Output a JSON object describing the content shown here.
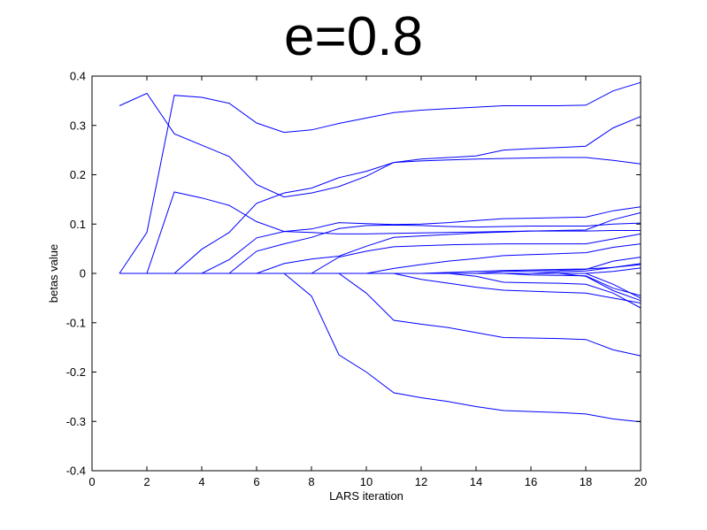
{
  "chart_data": {
    "type": "line",
    "title": "e=0.8",
    "xlabel": "LARS iteration",
    "ylabel": "betas value",
    "xlim": [
      0,
      20
    ],
    "ylim": [
      -0.4,
      0.4
    ],
    "xticks": [
      0,
      2,
      4,
      6,
      8,
      10,
      12,
      14,
      16,
      18,
      20
    ],
    "yticks": [
      -0.4,
      -0.3,
      -0.2,
      -0.1,
      0,
      0.1,
      0.2,
      0.3,
      0.4
    ],
    "line_color": "#0000ff",
    "grid": false,
    "x": [
      1,
      2,
      3,
      4,
      5,
      6,
      7,
      8,
      9,
      10,
      11,
      12,
      13,
      14,
      15,
      16,
      17,
      18,
      19,
      20
    ],
    "series": [
      {
        "values": [
          0.34,
          0.365,
          0.283,
          0.26,
          0.237,
          0.18,
          0.155,
          0.163,
          0.176,
          0.197,
          0.225,
          0.232,
          0.235,
          0.238,
          0.25,
          0.253,
          0.255,
          0.258,
          0.295,
          0.318
        ]
      },
      {
        "values": [
          0,
          0.083,
          0.361,
          0.357,
          0.345,
          0.305,
          0.286,
          0.291,
          0.304,
          0.315,
          0.326,
          0.331,
          0.334,
          0.337,
          0.34,
          0.34,
          0.34,
          0.341,
          0.37,
          0.387
        ]
      },
      {
        "values": [
          0,
          0,
          0.165,
          0.153,
          0.138,
          0.105,
          0.085,
          0.083,
          0.08,
          0.08,
          0.081,
          0.082,
          0.083,
          0.084,
          0.085,
          0.086,
          0.086,
          0.086,
          0.087,
          0.087
        ]
      },
      {
        "values": [
          0,
          0,
          0,
          0.049,
          0.083,
          0.142,
          0.163,
          0.173,
          0.194,
          0.207,
          0.225,
          0.228,
          0.23,
          0.232,
          0.233,
          0.234,
          0.235,
          0.235,
          0.229,
          0.222
        ]
      },
      {
        "values": [
          0,
          0,
          0,
          0,
          0.028,
          0.072,
          0.085,
          0.09,
          0.103,
          0.101,
          0.099,
          0.1,
          0.103,
          0.107,
          0.111,
          0.112,
          0.113,
          0.114,
          0.127,
          0.135
        ]
      },
      {
        "values": [
          0,
          0,
          0,
          0,
          0,
          0.045,
          0.06,
          0.073,
          0.091,
          0.097,
          0.098,
          0.097,
          0.095,
          0.094,
          0.095,
          0.096,
          0.096,
          0.096,
          0.1,
          0.102
        ]
      },
      {
        "values": [
          0,
          0,
          0,
          0,
          0,
          0,
          0.02,
          0.029,
          0.035,
          0.055,
          0.073,
          0.076,
          0.079,
          0.082,
          0.084,
          0.086,
          0.087,
          0.088,
          0.109,
          0.123
        ]
      },
      {
        "values": [
          0,
          0,
          0,
          0,
          0,
          0,
          0,
          -0.046,
          -0.165,
          -0.2,
          -0.242,
          -0.252,
          -0.26,
          -0.27,
          -0.278,
          -0.28,
          -0.282,
          -0.285,
          -0.295,
          -0.301
        ]
      },
      {
        "values": [
          0,
          0,
          0,
          0,
          0,
          0,
          0,
          0,
          0.033,
          0.045,
          0.054,
          0.056,
          0.058,
          0.059,
          0.06,
          0.06,
          0.06,
          0.06,
          0.07,
          0.08
        ]
      },
      {
        "values": [
          0,
          0,
          0,
          0,
          0,
          0,
          0,
          0,
          0,
          -0.04,
          -0.095,
          -0.103,
          -0.11,
          -0.12,
          -0.13,
          -0.131,
          -0.132,
          -0.134,
          -0.155,
          -0.167
        ]
      },
      {
        "values": [
          0,
          0,
          0,
          0,
          0,
          0,
          0,
          0,
          0,
          0,
          0.01,
          0.018,
          0.025,
          0.03,
          0.036,
          0.038,
          0.04,
          0.042,
          0.053,
          0.06
        ]
      },
      {
        "values": [
          0,
          0,
          0,
          0,
          0,
          0,
          0,
          0,
          0,
          0,
          0,
          -0.012,
          -0.02,
          -0.028,
          -0.034,
          -0.036,
          -0.038,
          -0.04,
          -0.05,
          -0.06
        ]
      },
      {
        "values": [
          0,
          0,
          0,
          0,
          0,
          0,
          0,
          0,
          0,
          0,
          0,
          0,
          0.002,
          0.004,
          0.006,
          0.007,
          0.008,
          0.009,
          0.012,
          0.018
        ]
      },
      {
        "values": [
          0,
          0,
          0,
          0,
          0,
          0,
          0,
          0,
          0,
          0,
          0,
          0,
          0,
          -0.006,
          -0.018,
          -0.019,
          -0.02,
          -0.022,
          -0.04,
          -0.07
        ]
      },
      {
        "values": [
          0,
          0,
          0,
          0,
          0,
          0,
          0,
          0,
          0,
          0,
          0,
          0,
          0,
          0,
          0.004,
          0.005,
          0.006,
          0.008,
          0.025,
          0.033
        ]
      },
      {
        "values": [
          0,
          0,
          0,
          0,
          0,
          0,
          0,
          0,
          0,
          0,
          0,
          0,
          0,
          0,
          0,
          -0.003,
          -0.004,
          -0.005,
          -0.03,
          -0.045
        ]
      },
      {
        "values": [
          0,
          0,
          0,
          0,
          0,
          0,
          0,
          0,
          0,
          0,
          0,
          0,
          0,
          0,
          0,
          0,
          0.003,
          0.005,
          0.012,
          0.02
        ]
      },
      {
        "values": [
          0,
          0,
          0,
          0,
          0,
          0,
          0,
          0,
          0,
          0,
          0,
          0,
          0,
          0,
          0,
          0,
          0,
          -0.006,
          -0.035,
          -0.055
        ]
      },
      {
        "values": [
          0,
          0,
          0,
          0,
          0,
          0,
          0,
          0,
          0,
          0,
          0,
          0,
          0,
          0,
          0,
          0,
          0,
          0,
          0.004,
          0.011
        ]
      },
      {
        "values": [
          0,
          0,
          0,
          0,
          0,
          0,
          0,
          0,
          0,
          0,
          0,
          0,
          0,
          0,
          0,
          0,
          0,
          0,
          -0.022,
          -0.05
        ]
      }
    ]
  }
}
